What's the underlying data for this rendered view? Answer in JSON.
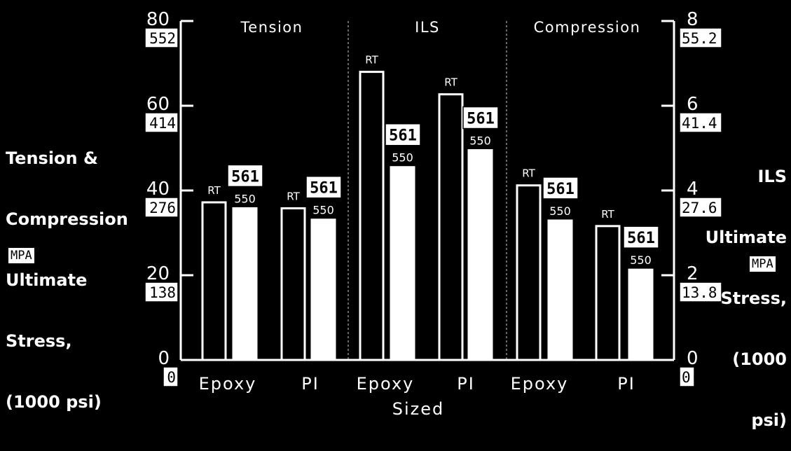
{
  "chart_data": {
    "type": "bar",
    "groups": [
      {
        "label": "Tension"
      },
      {
        "label": "ILS"
      },
      {
        "label": "Compression"
      }
    ],
    "categories": [
      "Epoxy",
      "PI",
      "Epoxy",
      "PI",
      "Epoxy",
      "PI"
    ],
    "xlabel": "Sized",
    "series": [
      {
        "name": "RT",
        "values": [
          37.2,
          35.8,
          6.8,
          6.27,
          41.2,
          31.6
        ]
      },
      {
        "name": "550",
        "values": [
          35.8,
          33.1,
          4.55,
          4.95,
          32.9,
          21.3
        ]
      }
    ],
    "series_box_label": "561",
    "series_value_axis": [
      "left",
      "left",
      "right",
      "right",
      "left",
      "left"
    ],
    "left_axis": {
      "label_lines": [
        "Tension &",
        "Compression",
        "Ultimate",
        "Stress,",
        "(1000 psi)"
      ],
      "unit_box": "MPA",
      "ylim": [
        0,
        80
      ],
      "ticks": [
        0,
        20,
        40,
        60,
        80
      ],
      "tick_mpa": [
        "0",
        "138",
        "276",
        "414",
        "552"
      ]
    },
    "right_axis": {
      "label_lines": [
        "ILS",
        "Ultimate",
        "Stress,",
        "(1000",
        "psi)"
      ],
      "unit_box": "MPA",
      "ylim": [
        0,
        8
      ],
      "ticks": [
        0,
        2,
        4,
        6,
        8
      ],
      "tick_mpa": [
        "0",
        "13.8",
        "27.6",
        "41.4",
        "55.2"
      ]
    },
    "grid": false,
    "legend": "none"
  }
}
